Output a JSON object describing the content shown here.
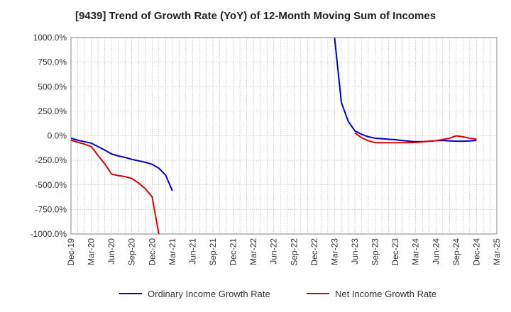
{
  "chart_data": {
    "type": "line",
    "title": "[9439]  Trend of Growth Rate (YoY) of 12-Month Moving Sum of Incomes",
    "xlabel": "",
    "ylabel": "",
    "ylim": [
      -1000,
      1000
    ],
    "y_ticks": [
      -1000,
      -750,
      -500,
      -250,
      0,
      250,
      500,
      750,
      1000
    ],
    "y_tick_labels": [
      "-1000.0%",
      "-750.0%",
      "-500.0%",
      "-250.0%",
      "0.0%",
      "250.0%",
      "500.0%",
      "750.0%",
      "1000.0%"
    ],
    "x_tick_labels": [
      "Dec-19",
      "Mar-20",
      "Jun-20",
      "Sep-20",
      "Dec-20",
      "Mar-21",
      "Jun-21",
      "Sep-21",
      "Dec-21",
      "Mar-22",
      "Jun-22",
      "Sep-22",
      "Dec-22",
      "Mar-23",
      "Jun-23",
      "Sep-23",
      "Dec-23",
      "Mar-24",
      "Jun-24",
      "Sep-24",
      "Dec-24",
      "Mar-25"
    ],
    "grid": true,
    "legend_position": "bottom",
    "series": [
      {
        "name": "Ordinary Income Growth Rate",
        "color": "#0000cc",
        "points": [
          {
            "x": "Dec-19",
            "y": -25
          },
          {
            "x": "Jan-20",
            "y": -45
          },
          {
            "x": "Feb-20",
            "y": -60
          },
          {
            "x": "Mar-20",
            "y": -75
          },
          {
            "x": "Apr-20",
            "y": -110
          },
          {
            "x": "May-20",
            "y": -145
          },
          {
            "x": "Jun-20",
            "y": -185
          },
          {
            "x": "Jul-20",
            "y": -205
          },
          {
            "x": "Aug-20",
            "y": -220
          },
          {
            "x": "Sep-20",
            "y": -240
          },
          {
            "x": "Oct-20",
            "y": -255
          },
          {
            "x": "Nov-20",
            "y": -270
          },
          {
            "x": "Dec-20",
            "y": -290
          },
          {
            "x": "Jan-21",
            "y": -330
          },
          {
            "x": "Feb-21",
            "y": -400
          },
          {
            "x": "Mar-21",
            "y": -560
          },
          {
            "x": "Apr-21",
            "y": null
          },
          {
            "x": "Mar-23",
            "y": 1000
          },
          {
            "x": "Apr-23",
            "y": 340
          },
          {
            "x": "May-23",
            "y": 150
          },
          {
            "x": "Jun-23",
            "y": 50
          },
          {
            "x": "Jul-23",
            "y": 15
          },
          {
            "x": "Aug-23",
            "y": -10
          },
          {
            "x": "Sep-23",
            "y": -25
          },
          {
            "x": "Oct-23",
            "y": -30
          },
          {
            "x": "Nov-23",
            "y": -35
          },
          {
            "x": "Dec-23",
            "y": -40
          },
          {
            "x": "Jan-24",
            "y": -48
          },
          {
            "x": "Feb-24",
            "y": -55
          },
          {
            "x": "Mar-24",
            "y": -60
          },
          {
            "x": "Apr-24",
            "y": -60
          },
          {
            "x": "May-24",
            "y": -55
          },
          {
            "x": "Jun-24",
            "y": -50
          },
          {
            "x": "Jul-24",
            "y": -48
          },
          {
            "x": "Aug-24",
            "y": -52
          },
          {
            "x": "Sep-24",
            "y": -55
          },
          {
            "x": "Oct-24",
            "y": -55
          },
          {
            "x": "Nov-24",
            "y": -52
          },
          {
            "x": "Dec-24",
            "y": -48
          }
        ]
      },
      {
        "name": "Net Income Growth Rate",
        "color": "#dd0000",
        "points": [
          {
            "x": "Dec-19",
            "y": -45
          },
          {
            "x": "Jan-20",
            "y": -65
          },
          {
            "x": "Feb-20",
            "y": -85
          },
          {
            "x": "Mar-20",
            "y": -110
          },
          {
            "x": "Apr-20",
            "y": -200
          },
          {
            "x": "May-20",
            "y": -285
          },
          {
            "x": "Jun-20",
            "y": -390
          },
          {
            "x": "Jul-20",
            "y": -405
          },
          {
            "x": "Aug-20",
            "y": -415
          },
          {
            "x": "Sep-20",
            "y": -435
          },
          {
            "x": "Oct-20",
            "y": -480
          },
          {
            "x": "Nov-20",
            "y": -540
          },
          {
            "x": "Dec-20",
            "y": -620
          },
          {
            "x": "Jan-21",
            "y": -1000
          },
          {
            "x": "Feb-21",
            "y": null
          },
          {
            "x": "Jun-23",
            "y": 30
          },
          {
            "x": "Jul-23",
            "y": -20
          },
          {
            "x": "Aug-23",
            "y": -50
          },
          {
            "x": "Sep-23",
            "y": -70
          },
          {
            "x": "Oct-23",
            "y": -70
          },
          {
            "x": "Nov-23",
            "y": -70
          },
          {
            "x": "Dec-23",
            "y": -70
          },
          {
            "x": "Jan-24",
            "y": -70
          },
          {
            "x": "Feb-24",
            "y": -70
          },
          {
            "x": "Mar-24",
            "y": -68
          },
          {
            "x": "Apr-24",
            "y": -62
          },
          {
            "x": "May-24",
            "y": -55
          },
          {
            "x": "Jun-24",
            "y": -50
          },
          {
            "x": "Jul-24",
            "y": -38
          },
          {
            "x": "Aug-24",
            "y": -25
          },
          {
            "x": "Sep-24",
            "y": 0
          },
          {
            "x": "Oct-24",
            "y": -10
          },
          {
            "x": "Nov-24",
            "y": -25
          },
          {
            "x": "Dec-24",
            "y": -35
          }
        ]
      }
    ]
  }
}
